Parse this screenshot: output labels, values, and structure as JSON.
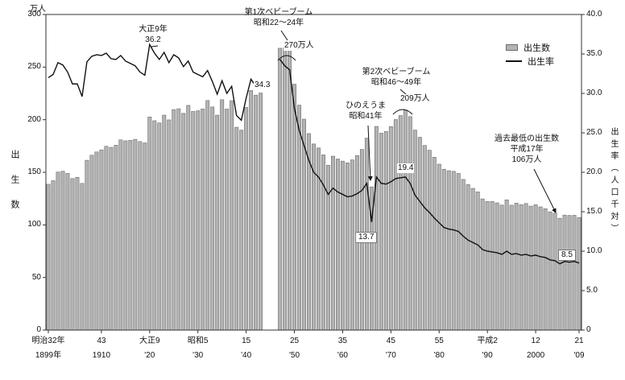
{
  "left_axis": {
    "unit": "万人",
    "title": "出生数",
    "ticks": [
      "0",
      "50",
      "100",
      "150",
      "200",
      "250",
      "300"
    ],
    "max": 300
  },
  "right_axis": {
    "title": "出生率（人口千対）",
    "ticks": [
      "0",
      "5.0",
      "10.0",
      "15.0",
      "20.0",
      "25.0",
      "30.0",
      "35.0",
      "40.0"
    ],
    "max": 40
  },
  "legend": {
    "births": "出生数",
    "rate": "出生率"
  },
  "x_axis": {
    "ticks": [
      {
        "year": 1899,
        "era": "明治32年",
        "west": "1899年"
      },
      {
        "year": 1910,
        "era": "43",
        "west": "1910"
      },
      {
        "year": 1920,
        "era": "大正9",
        "west": "'20"
      },
      {
        "year": 1930,
        "era": "昭和5",
        "west": "'30"
      },
      {
        "year": 1940,
        "era": "15",
        "west": "'40"
      },
      {
        "year": 1950,
        "era": "25",
        "west": "'50"
      },
      {
        "year": 1960,
        "era": "35",
        "west": "'60"
      },
      {
        "year": 1970,
        "era": "45",
        "west": "'70"
      },
      {
        "year": 1980,
        "era": "55",
        "west": "'80"
      },
      {
        "year": 1990,
        "era": "平成2",
        "west": "'90"
      },
      {
        "year": 2000,
        "era": "12",
        "west": "2000"
      },
      {
        "year": 2009,
        "era": "21",
        "west": "'09"
      }
    ]
  },
  "annotations": {
    "taisho9": {
      "line1": "大正9年",
      "line2": "36.2"
    },
    "boom1": {
      "line1": "第1次ベビーブーム",
      "line2": "昭和22～24年",
      "value": "270万人"
    },
    "rate_1947": "34.3",
    "hinoeuma": {
      "line1": "ひのえうま",
      "line2": "昭和41年",
      "value": "13.7"
    },
    "boom2": {
      "line1": "第2次ベビーブーム",
      "line2": "昭和46～49年",
      "value": "209万人"
    },
    "rate_1973": "19.4",
    "record_low": {
      "line1": "過去最低の出生数",
      "line2": "平成17年",
      "line3": "106万人"
    },
    "rate_2009": "8.5"
  },
  "colors": {
    "bar_fill": "#b3b3b3",
    "bar_stroke": "#6b6b6b",
    "line": "#111111",
    "axis": "#333333"
  },
  "chart_data": {
    "type": "bar+line",
    "x_from": 1899,
    "x_to": 2009,
    "left_axis_range": [
      0,
      300
    ],
    "right_axis_range": [
      0,
      40
    ],
    "series": [
      {
        "name": "出生数",
        "type": "bar",
        "axis": "left",
        "unit": "万人",
        "values": [
          138.6,
          142.0,
          150.2,
          151.0,
          148.9,
          144.0,
          145.2,
          139.4,
          161.4,
          166.2,
          169.3,
          171.3,
          174.7,
          173.7,
          175.7,
          180.8,
          179.9,
          180.4,
          181.3,
          179.2,
          177.9,
          202.6,
          199.0,
          196.9,
          204.3,
          199.8,
          209.6,
          210.4,
          206.0,
          213.6,
          207.8,
          208.5,
          210.2,
          218.2,
          212.1,
          204.3,
          219.0,
          210.1,
          218.1,
          192.8,
          190.1,
          211.6,
          227.7,
          223.3,
          225.3,
          null,
          null,
          null,
          267.9,
          268.2,
          269.7,
          233.7,
          213.8,
          200.5,
          186.8,
          176.9,
          173.1,
          166.5,
          156.7,
          165.3,
          162.6,
          160.6,
          158.9,
          161.8,
          165.9,
          171.7,
          182.4,
          136.1,
          193.6,
          187.2,
          188.9,
          193.4,
          200.1,
          203.9,
          209.2,
          202.9,
          190.1,
          183.3,
          175.5,
          170.9,
          164.3,
          157.7,
          152.9,
          151.5,
          150.9,
          148.9,
          143.2,
          138.3,
          134.7,
          131.4,
          124.7,
          122.2,
          122.3,
          120.9,
          118.8,
          123.8,
          118.7,
          120.7,
          119.2,
          120.3,
          117.8,
          119.1,
          117.1,
          115.4,
          112.4,
          111.1,
          106.3,
          109.3,
          109.0,
          109.1,
          107.0
        ]
      },
      {
        "name": "出生率",
        "type": "line",
        "axis": "right",
        "unit": "人口千対",
        "values": [
          32.0,
          32.4,
          33.9,
          33.6,
          32.7,
          31.2,
          31.2,
          29.6,
          34.0,
          34.7,
          34.9,
          34.8,
          35.1,
          34.4,
          34.3,
          34.8,
          34.1,
          33.8,
          33.5,
          32.7,
          32.3,
          36.2,
          35.1,
          34.3,
          35.2,
          33.9,
          34.9,
          34.5,
          33.4,
          34.1,
          32.7,
          32.4,
          32.1,
          32.9,
          31.5,
          29.9,
          31.6,
          30.0,
          30.9,
          27.2,
          26.6,
          29.4,
          31.8,
          30.9,
          30.9,
          null,
          null,
          null,
          34.3,
          33.5,
          33.0,
          28.1,
          25.3,
          23.4,
          21.5,
          20.0,
          19.4,
          18.4,
          17.2,
          18.0,
          17.5,
          17.2,
          16.9,
          17.0,
          17.3,
          17.7,
          18.6,
          13.7,
          19.4,
          18.6,
          18.5,
          18.8,
          19.2,
          19.3,
          19.4,
          18.6,
          17.1,
          16.3,
          15.5,
          14.9,
          14.2,
          13.6,
          13.0,
          12.8,
          12.7,
          12.5,
          11.9,
          11.4,
          11.1,
          10.8,
          10.2,
          10.0,
          9.9,
          9.8,
          9.6,
          10.0,
          9.6,
          9.7,
          9.5,
          9.6,
          9.4,
          9.5,
          9.3,
          9.2,
          8.9,
          8.8,
          8.4,
          8.7,
          8.6,
          8.7,
          8.5
        ]
      }
    ]
  }
}
